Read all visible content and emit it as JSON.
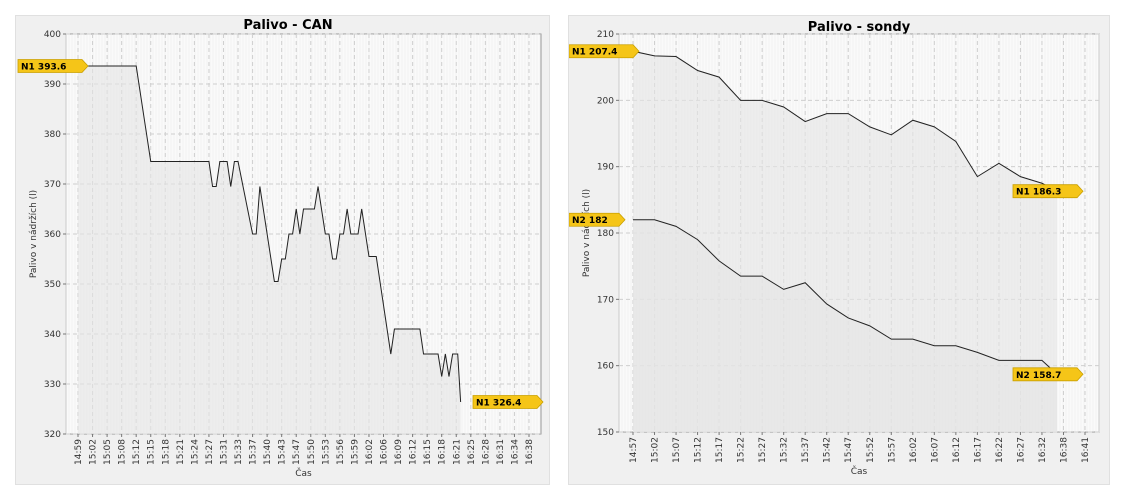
{
  "chart_data": [
    {
      "type": "area",
      "title": "Palivo - CAN",
      "xlabel": "Čas",
      "ylabel": "Palivo v nádržích (l)",
      "ylim": [
        320,
        400
      ],
      "yticks": [
        320,
        330,
        340,
        350,
        360,
        370,
        380,
        390,
        400
      ],
      "x_ticks": [
        "14:59",
        "15:02",
        "15:05",
        "15:08",
        "15:12",
        "15:15",
        "15:18",
        "15:21",
        "15:24",
        "15:27",
        "15:31",
        "15:33",
        "15:37",
        "15:40",
        "15:43",
        "15:47",
        "15:50",
        "15:53",
        "15:56",
        "15:59",
        "16:02",
        "16:06",
        "16:09",
        "16:12",
        "16:15",
        "16:18",
        "16:21",
        "16:25",
        "16:28",
        "16:31",
        "16:34",
        "16:38"
      ],
      "grid": true,
      "colors": {
        "line": "#222222",
        "fill": "#e4e4e4",
        "flag": "#f5c518"
      },
      "series": [
        {
          "name": "N1",
          "points": [
            [
              0,
              393.6
            ],
            [
              4,
              393.6
            ],
            [
              5,
              374.5
            ],
            [
              9,
              374.5
            ],
            [
              9.25,
              369.5
            ],
            [
              9.5,
              369.5
            ],
            [
              9.75,
              374.5
            ],
            [
              10.25,
              374.5
            ],
            [
              10.5,
              369.5
            ],
            [
              10.75,
              374.5
            ],
            [
              11,
              374.5
            ],
            [
              12,
              360
            ],
            [
              12.25,
              360
            ],
            [
              12.5,
              369.5
            ],
            [
              13.5,
              350.5
            ],
            [
              13.75,
              350.5
            ],
            [
              14,
              355
            ],
            [
              14.25,
              355
            ],
            [
              14.5,
              360
            ],
            [
              14.75,
              360
            ],
            [
              15,
              365
            ],
            [
              15.25,
              360
            ],
            [
              15.5,
              365
            ],
            [
              16,
              365
            ],
            [
              16.25,
              365
            ],
            [
              16.5,
              369.5
            ],
            [
              17,
              360
            ],
            [
              17.25,
              360
            ],
            [
              17.5,
              355
            ],
            [
              17.75,
              355
            ],
            [
              18,
              360
            ],
            [
              18.25,
              360
            ],
            [
              18.5,
              365
            ],
            [
              18.75,
              360
            ],
            [
              19,
              360
            ],
            [
              19.25,
              360
            ],
            [
              19.5,
              365
            ],
            [
              20,
              355.5
            ],
            [
              20.5,
              355.5
            ],
            [
              21.5,
              336
            ],
            [
              21.75,
              341
            ],
            [
              23.5,
              341
            ],
            [
              23.75,
              336
            ],
            [
              24.75,
              336
            ],
            [
              25,
              331.5
            ],
            [
              25.25,
              336
            ],
            [
              25.5,
              331.5
            ],
            [
              25.75,
              336
            ],
            [
              26.1,
              336
            ],
            [
              26.3,
              326.4
            ]
          ]
        }
      ],
      "annotations": [
        {
          "label": "N1 393.6",
          "value": 393.6,
          "side": "left"
        },
        {
          "label": "N1 326.4",
          "value": 326.4,
          "side": "right"
        }
      ]
    },
    {
      "type": "area",
      "title": "Palivo - sondy",
      "xlabel": "Čas",
      "ylabel": "Palivo v nádržích (l)",
      "ylim": [
        150,
        210
      ],
      "yticks": [
        150,
        160,
        170,
        180,
        190,
        200,
        210
      ],
      "x_ticks": [
        "14:57",
        "15:02",
        "15:07",
        "15:12",
        "15:17",
        "15:22",
        "15:27",
        "15:32",
        "15:37",
        "15:42",
        "15:47",
        "15:52",
        "15:57",
        "16:02",
        "16:07",
        "16:12",
        "16:17",
        "16:22",
        "16:27",
        "16:32",
        "16:38",
        "16:41"
      ],
      "grid": true,
      "colors": {
        "line": "#222222",
        "fill": "#e4e4e4",
        "flag": "#f5c518"
      },
      "series": [
        {
          "name": "N1",
          "points": [
            [
              0,
              207.4
            ],
            [
              1,
              206.7
            ],
            [
              2,
              206.6
            ],
            [
              3,
              204.5
            ],
            [
              4,
              203.5
            ],
            [
              5,
              200
            ],
            [
              6,
              200
            ],
            [
              7,
              199
            ],
            [
              8,
              196.8
            ],
            [
              9,
              198
            ],
            [
              10,
              198
            ],
            [
              11,
              196
            ],
            [
              12,
              194.8
            ],
            [
              13,
              197
            ],
            [
              14,
              196
            ],
            [
              15,
              193.8
            ],
            [
              16,
              188.5
            ],
            [
              17,
              190.5
            ],
            [
              18,
              188.5
            ],
            [
              19,
              187.5
            ],
            [
              19.7,
              186.3
            ]
          ]
        },
        {
          "name": "N2",
          "points": [
            [
              0,
              182
            ],
            [
              1,
              182
            ],
            [
              2,
              181
            ],
            [
              3,
              179
            ],
            [
              4,
              175.8
            ],
            [
              5,
              173.5
            ],
            [
              6,
              173.5
            ],
            [
              7,
              171.5
            ],
            [
              8,
              172.5
            ],
            [
              9,
              169.3
            ],
            [
              10,
              167.2
            ],
            [
              11,
              166
            ],
            [
              12,
              164
            ],
            [
              13,
              164
            ],
            [
              14,
              163
            ],
            [
              15,
              163
            ],
            [
              16,
              162
            ],
            [
              17,
              160.8
            ],
            [
              18,
              160.8
            ],
            [
              19,
              160.8
            ],
            [
              19.7,
              158.7
            ]
          ]
        }
      ],
      "annotations": [
        {
          "label": "N1 207.4",
          "value": 207.4,
          "side": "left"
        },
        {
          "label": "N2 182",
          "value": 182,
          "side": "left"
        },
        {
          "label": "N1 186.3",
          "value": 186.3,
          "side": "right"
        },
        {
          "label": "N2 158.7",
          "value": 158.7,
          "side": "right"
        }
      ]
    }
  ]
}
